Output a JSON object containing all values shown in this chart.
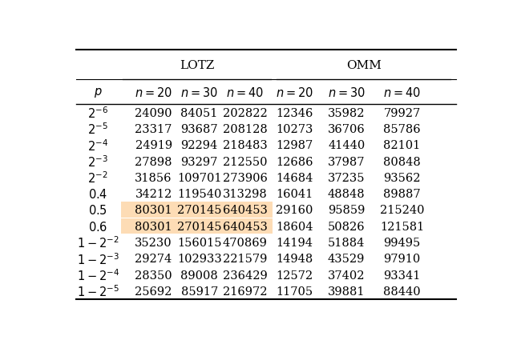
{
  "col_headers_group": [
    "LOTZ",
    "OMM"
  ],
  "col_headers": [
    "p",
    "n = 20",
    "n = 30",
    "n = 40",
    "n = 20",
    "n = 30",
    "n = 40"
  ],
  "rows": [
    {
      "p": "2^{-6}",
      "lotz": [
        24090,
        84051,
        202822
      ],
      "omm": [
        12346,
        35982,
        79927
      ],
      "highlight": false
    },
    {
      "p": "2^{-5}",
      "lotz": [
        23317,
        93687,
        208128
      ],
      "omm": [
        10273,
        36706,
        85786
      ],
      "highlight": false
    },
    {
      "p": "2^{-4}",
      "lotz": [
        24919,
        92294,
        218483
      ],
      "omm": [
        12987,
        41440,
        82101
      ],
      "highlight": false
    },
    {
      "p": "2^{-3}",
      "lotz": [
        27898,
        93297,
        212550
      ],
      "omm": [
        12686,
        37987,
        80848
      ],
      "highlight": false
    },
    {
      "p": "2^{-2}",
      "lotz": [
        31856,
        109701,
        273906
      ],
      "omm": [
        14684,
        37235,
        93562
      ],
      "highlight": false
    },
    {
      "p": "0.4",
      "lotz": [
        34212,
        119540,
        313298
      ],
      "omm": [
        16041,
        48848,
        89887
      ],
      "highlight": false
    },
    {
      "p": "0.5",
      "lotz": [
        80301,
        270145,
        640453
      ],
      "omm": [
        29160,
        95859,
        215240
      ],
      "highlight": true
    },
    {
      "p": "0.6",
      "lotz": [
        80301,
        270145,
        640453
      ],
      "omm": [
        18604,
        50826,
        121581
      ],
      "highlight": true
    },
    {
      "p": "1 - 2^{-2}",
      "lotz": [
        35230,
        156015,
        470869
      ],
      "omm": [
        14194,
        51884,
        99495
      ],
      "highlight": false
    },
    {
      "p": "1 - 2^{-3}",
      "lotz": [
        29274,
        102933,
        221579
      ],
      "omm": [
        14948,
        43529,
        97910
      ],
      "highlight": false
    },
    {
      "p": "1 - 2^{-4}",
      "lotz": [
        28350,
        89008,
        236429
      ],
      "omm": [
        12572,
        37402,
        93341
      ],
      "highlight": false
    },
    {
      "p": "1 - 2^{-5}",
      "lotz": [
        25692,
        85917,
        216972
      ],
      "omm": [
        11705,
        39881,
        88440
      ],
      "highlight": false
    }
  ],
  "highlight_color": "#FDDCB5",
  "background_color": "#ffffff",
  "font_size": 10.5
}
